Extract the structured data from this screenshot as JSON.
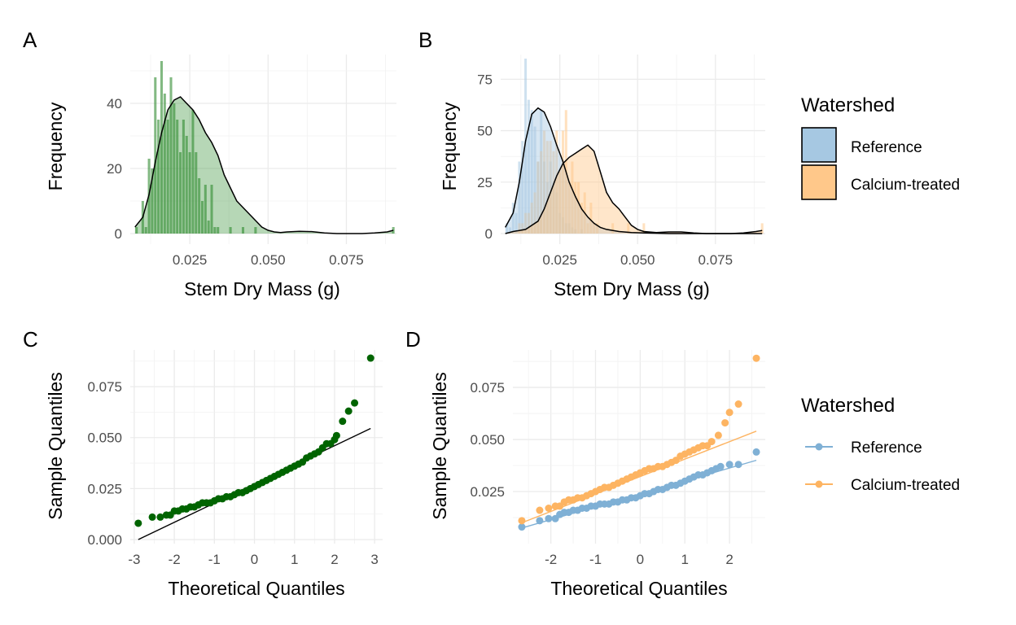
{
  "chart_data": [
    {
      "panel": "A",
      "type": "bar",
      "subtype": "histogram_with_density",
      "xlabel": "Stem Dry Mass (g)",
      "ylabel": "Frequency",
      "xlim": [
        0.006,
        0.091
      ],
      "ylim": [
        0,
        55
      ],
      "xticks": [
        0.025,
        0.05,
        0.075
      ],
      "xtick_labels": [
        "0.025",
        "0.050",
        "0.075"
      ],
      "yticks": [
        0,
        20,
        40
      ],
      "ytick_labels": [
        "0",
        "20",
        "40"
      ],
      "grid": true,
      "bin_start": 0.0075,
      "bin_width": 0.001,
      "fill_color": "#2e8b2e",
      "values": [
        2,
        0,
        10,
        2,
        23,
        20,
        48,
        35,
        53,
        43,
        35,
        48,
        40,
        35,
        25,
        35,
        30,
        25,
        38,
        25,
        17,
        10,
        15,
        4,
        15,
        2,
        2,
        0,
        0,
        0,
        2,
        0,
        0,
        0,
        2,
        0,
        0,
        0,
        2,
        0,
        0,
        0,
        0,
        0,
        0,
        0,
        0,
        0,
        0,
        0,
        0,
        0,
        0,
        0,
        0,
        0,
        0,
        0,
        0,
        0,
        0,
        0,
        0,
        0,
        0,
        0,
        0,
        0,
        0,
        0,
        0,
        0,
        0,
        0,
        0,
        0,
        0,
        0,
        0,
        0,
        0,
        0,
        2
      ],
      "density": {
        "x": [
          0.0075,
          0.01,
          0.012,
          0.014,
          0.016,
          0.018,
          0.02,
          0.022,
          0.024,
          0.026,
          0.028,
          0.03,
          0.032,
          0.034,
          0.036,
          0.038,
          0.04,
          0.042,
          0.044,
          0.046,
          0.048,
          0.05,
          0.052,
          0.054,
          0.056,
          0.06,
          0.064,
          0.068,
          0.072,
          0.076,
          0.08,
          0.084,
          0.088,
          0.09
        ],
        "y": [
          2,
          5,
          12,
          22,
          31,
          38,
          41,
          42,
          40,
          38,
          35,
          31,
          28,
          24,
          18,
          14,
          10,
          8,
          6,
          4,
          2,
          1,
          0.5,
          0.3,
          0.5,
          0.7,
          0.6,
          0.2,
          0,
          0,
          0,
          0.2,
          0.5,
          1
        ]
      },
      "density_color": "#000000"
    },
    {
      "panel": "B",
      "type": "bar",
      "subtype": "histogram_with_density",
      "xlabel": "Stem Dry Mass (g)",
      "ylabel": "Frequency",
      "xlim": [
        0.006,
        0.091
      ],
      "ylim": [
        0,
        87
      ],
      "xticks": [
        0.025,
        0.05,
        0.075
      ],
      "xtick_labels": [
        "0.025",
        "0.050",
        "0.075"
      ],
      "yticks": [
        0,
        25,
        50,
        75
      ],
      "ytick_labels": [
        "0",
        "25",
        "50",
        "75"
      ],
      "grid": true,
      "bin_start": 0.0075,
      "bin_width": 0.001,
      "legend": {
        "title": "Watershed",
        "position": "right",
        "entries": [
          "Reference",
          "Calcium-treated"
        ]
      },
      "series": [
        {
          "name": "Reference",
          "color": "#a6c8e2",
          "values": [
            5,
            3,
            15,
            10,
            35,
            45,
            85,
            65,
            60,
            52,
            35,
            60,
            35,
            25,
            35,
            25,
            20,
            10,
            8,
            5,
            5,
            3,
            2,
            0,
            2,
            0,
            0,
            0,
            0,
            0,
            0,
            0,
            0,
            0,
            0,
            0,
            0,
            0,
            0,
            0,
            0,
            0,
            0,
            0,
            0,
            0,
            0,
            0,
            0,
            0,
            0,
            0,
            0,
            0,
            0,
            0,
            0,
            0,
            0,
            0,
            0,
            0,
            0,
            0,
            0,
            0,
            0,
            0,
            0,
            0,
            0,
            0,
            0,
            0,
            0,
            0,
            0,
            0,
            0,
            0,
            0,
            0,
            0
          ],
          "density": {
            "x": [
              0.0075,
              0.01,
              0.012,
              0.014,
              0.016,
              0.018,
              0.02,
              0.022,
              0.024,
              0.026,
              0.028,
              0.03,
              0.032,
              0.034,
              0.036,
              0.038,
              0.04,
              0.044,
              0.048,
              0.052,
              0.06,
              0.07,
              0.08,
              0.09
            ],
            "y": [
              3,
              10,
              25,
              45,
              58,
              61,
              59,
              52,
              43,
              35,
              25,
              18,
              12,
              8,
              5,
              3,
              2,
              1,
              0.5,
              0.3,
              0,
              0,
              0,
              0
            ]
          }
        },
        {
          "name": "Calcium-treated",
          "color": "#ffc88a",
          "values": [
            0,
            0,
            0,
            0,
            5,
            5,
            10,
            10,
            15,
            20,
            35,
            40,
            50,
            45,
            45,
            40,
            50,
            30,
            50,
            60,
            25,
            35,
            25,
            25,
            15,
            20,
            5,
            15,
            5,
            5,
            0,
            0,
            0,
            0,
            5,
            0,
            0,
            0,
            0,
            5,
            0,
            0,
            0,
            0,
            5,
            0,
            0,
            0,
            0,
            0,
            0,
            0,
            0,
            0,
            0,
            0,
            0,
            0,
            0,
            0,
            0,
            0,
            0,
            0,
            0,
            0,
            0,
            0,
            0,
            0,
            0,
            0,
            0,
            0,
            0,
            0,
            0,
            0,
            0,
            0,
            0,
            0,
            5
          ],
          "density": {
            "x": [
              0.0075,
              0.01,
              0.014,
              0.018,
              0.02,
              0.022,
              0.024,
              0.026,
              0.028,
              0.03,
              0.032,
              0.034,
              0.036,
              0.038,
              0.04,
              0.042,
              0.044,
              0.046,
              0.048,
              0.05,
              0.052,
              0.056,
              0.06,
              0.064,
              0.068,
              0.072,
              0.076,
              0.08,
              0.084,
              0.088,
              0.09
            ],
            "y": [
              0,
              1,
              2,
              6,
              12,
              20,
              28,
              34,
              37,
              39,
              41,
              43,
              40,
              30,
              20,
              15,
              12,
              8,
              4,
              2,
              1,
              0.5,
              0.8,
              0.8,
              0.3,
              0,
              0,
              0,
              0.3,
              1,
              1.5
            ]
          }
        }
      ]
    },
    {
      "panel": "C",
      "type": "scatter",
      "subtype": "qq_plot",
      "xlabel": "Theoretical Quantiles",
      "ylabel": "Sample Quantiles",
      "xlim": [
        -3.1,
        3.2
      ],
      "ylim": [
        -0.002,
        0.093
      ],
      "xticks": [
        -3,
        -2,
        -1,
        0,
        1,
        2,
        3
      ],
      "xtick_labels": [
        "-3",
        "-2",
        "-1",
        "0",
        "1",
        "2",
        "3"
      ],
      "yticks": [
        0.0,
        0.025,
        0.05,
        0.075
      ],
      "ytick_labels": [
        "0.000",
        "0.025",
        "0.050",
        "0.075"
      ],
      "grid": true,
      "point_color": "#006400",
      "line_color": "#000000",
      "reference_line": {
        "x": [
          -2.9,
          2.9
        ],
        "y": [
          0.0,
          0.0545
        ]
      },
      "points": {
        "x": [
          -2.9,
          -2.55,
          -2.35,
          -2.2,
          -2.1,
          -2.0,
          -1.9,
          -1.8,
          -1.7,
          -1.6,
          -1.5,
          -1.4,
          -1.3,
          -1.2,
          -1.1,
          -1.0,
          -0.9,
          -0.8,
          -0.7,
          -0.6,
          -0.5,
          -0.4,
          -0.3,
          -0.2,
          -0.1,
          0.0,
          0.1,
          0.2,
          0.3,
          0.4,
          0.5,
          0.6,
          0.7,
          0.8,
          0.9,
          1.0,
          1.1,
          1.2,
          1.3,
          1.4,
          1.5,
          1.6,
          1.7,
          1.8,
          1.9,
          2.0,
          2.05,
          2.2,
          2.35,
          2.5,
          2.9
        ],
        "y": [
          0.008,
          0.011,
          0.011,
          0.012,
          0.012,
          0.014,
          0.014,
          0.015,
          0.015,
          0.016,
          0.016,
          0.017,
          0.018,
          0.018,
          0.018,
          0.019,
          0.02,
          0.02,
          0.021,
          0.021,
          0.022,
          0.023,
          0.023,
          0.024,
          0.025,
          0.026,
          0.027,
          0.028,
          0.029,
          0.03,
          0.031,
          0.032,
          0.033,
          0.034,
          0.035,
          0.036,
          0.037,
          0.038,
          0.04,
          0.041,
          0.042,
          0.043,
          0.045,
          0.047,
          0.047,
          0.049,
          0.051,
          0.058,
          0.063,
          0.067,
          0.089
        ]
      }
    },
    {
      "panel": "D",
      "type": "scatter",
      "subtype": "qq_plot",
      "xlabel": "Theoretical Quantiles",
      "ylabel": "Sample Quantiles",
      "xlim": [
        -2.85,
        2.8
      ],
      "ylim": [
        0.0,
        0.093
      ],
      "xticks": [
        -2,
        -1,
        0,
        1,
        2
      ],
      "xtick_labels": [
        "-2",
        "-1",
        "0",
        "1",
        "2"
      ],
      "yticks": [
        0.025,
        0.05,
        0.075
      ],
      "ytick_labels": [
        "0.025",
        "0.050",
        "0.075"
      ],
      "grid": true,
      "legend": {
        "title": "Watershed",
        "position": "right",
        "entries": [
          "Reference",
          "Calcium-treated"
        ]
      },
      "series": [
        {
          "name": "Reference",
          "color": "#7fb0d5",
          "reference_line": {
            "x": [
              -2.65,
              2.6
            ],
            "y": [
              0.0075,
              0.04
            ]
          },
          "points": {
            "x": [
              -2.65,
              -2.25,
              -2.05,
              -1.9,
              -1.8,
              -1.7,
              -1.6,
              -1.5,
              -1.4,
              -1.3,
              -1.2,
              -1.1,
              -1.0,
              -0.9,
              -0.8,
              -0.7,
              -0.6,
              -0.5,
              -0.4,
              -0.3,
              -0.2,
              -0.1,
              0.0,
              0.1,
              0.2,
              0.3,
              0.4,
              0.5,
              0.6,
              0.7,
              0.8,
              0.9,
              1.0,
              1.1,
              1.2,
              1.3,
              1.4,
              1.5,
              1.6,
              1.7,
              1.8,
              2.0,
              2.2,
              2.6
            ],
            "y": [
              0.008,
              0.011,
              0.012,
              0.012,
              0.014,
              0.015,
              0.015,
              0.016,
              0.016,
              0.017,
              0.017,
              0.018,
              0.018,
              0.019,
              0.019,
              0.019,
              0.02,
              0.02,
              0.021,
              0.021,
              0.022,
              0.022,
              0.023,
              0.024,
              0.024,
              0.025,
              0.026,
              0.026,
              0.027,
              0.028,
              0.028,
              0.029,
              0.03,
              0.031,
              0.032,
              0.033,
              0.033,
              0.034,
              0.035,
              0.036,
              0.037,
              0.038,
              0.038,
              0.044
            ]
          }
        },
        {
          "name": "Calcium-treated",
          "color": "#fdb462",
          "reference_line": {
            "x": [
              -2.65,
              2.6
            ],
            "y": [
              0.01,
              0.054
            ]
          },
          "points": {
            "x": [
              -2.65,
              -2.25,
              -2.05,
              -1.9,
              -1.8,
              -1.7,
              -1.6,
              -1.5,
              -1.4,
              -1.3,
              -1.2,
              -1.1,
              -1.0,
              -0.9,
              -0.8,
              -0.7,
              -0.6,
              -0.5,
              -0.4,
              -0.3,
              -0.2,
              -0.1,
              0.0,
              0.1,
              0.2,
              0.3,
              0.4,
              0.5,
              0.6,
              0.7,
              0.8,
              0.9,
              1.0,
              1.1,
              1.2,
              1.3,
              1.4,
              1.5,
              1.6,
              1.75,
              1.9,
              2.0,
              2.2,
              2.6
            ],
            "y": [
              0.011,
              0.016,
              0.017,
              0.018,
              0.018,
              0.02,
              0.021,
              0.021,
              0.022,
              0.022,
              0.023,
              0.024,
              0.025,
              0.026,
              0.027,
              0.027,
              0.028,
              0.029,
              0.03,
              0.031,
              0.032,
              0.033,
              0.034,
              0.035,
              0.036,
              0.036,
              0.037,
              0.037,
              0.038,
              0.039,
              0.04,
              0.042,
              0.043,
              0.044,
              0.045,
              0.046,
              0.047,
              0.047,
              0.049,
              0.052,
              0.058,
              0.063,
              0.067,
              0.089
            ]
          }
        }
      ]
    }
  ],
  "panels": {
    "A": {
      "label": "A"
    },
    "B": {
      "label": "B"
    },
    "C": {
      "label": "C"
    },
    "D": {
      "label": "D"
    }
  },
  "legends": {
    "fill": {
      "title": "Watershed",
      "entries": [
        {
          "label": "Reference",
          "color": "#a6c8e2"
        },
        {
          "label": "Calcium-treated",
          "color": "#ffc88a"
        }
      ]
    },
    "point": {
      "title": "Watershed",
      "entries": [
        {
          "label": "Reference",
          "color": "#7fb0d5"
        },
        {
          "label": "Calcium-treated",
          "color": "#fdb462"
        }
      ]
    }
  }
}
